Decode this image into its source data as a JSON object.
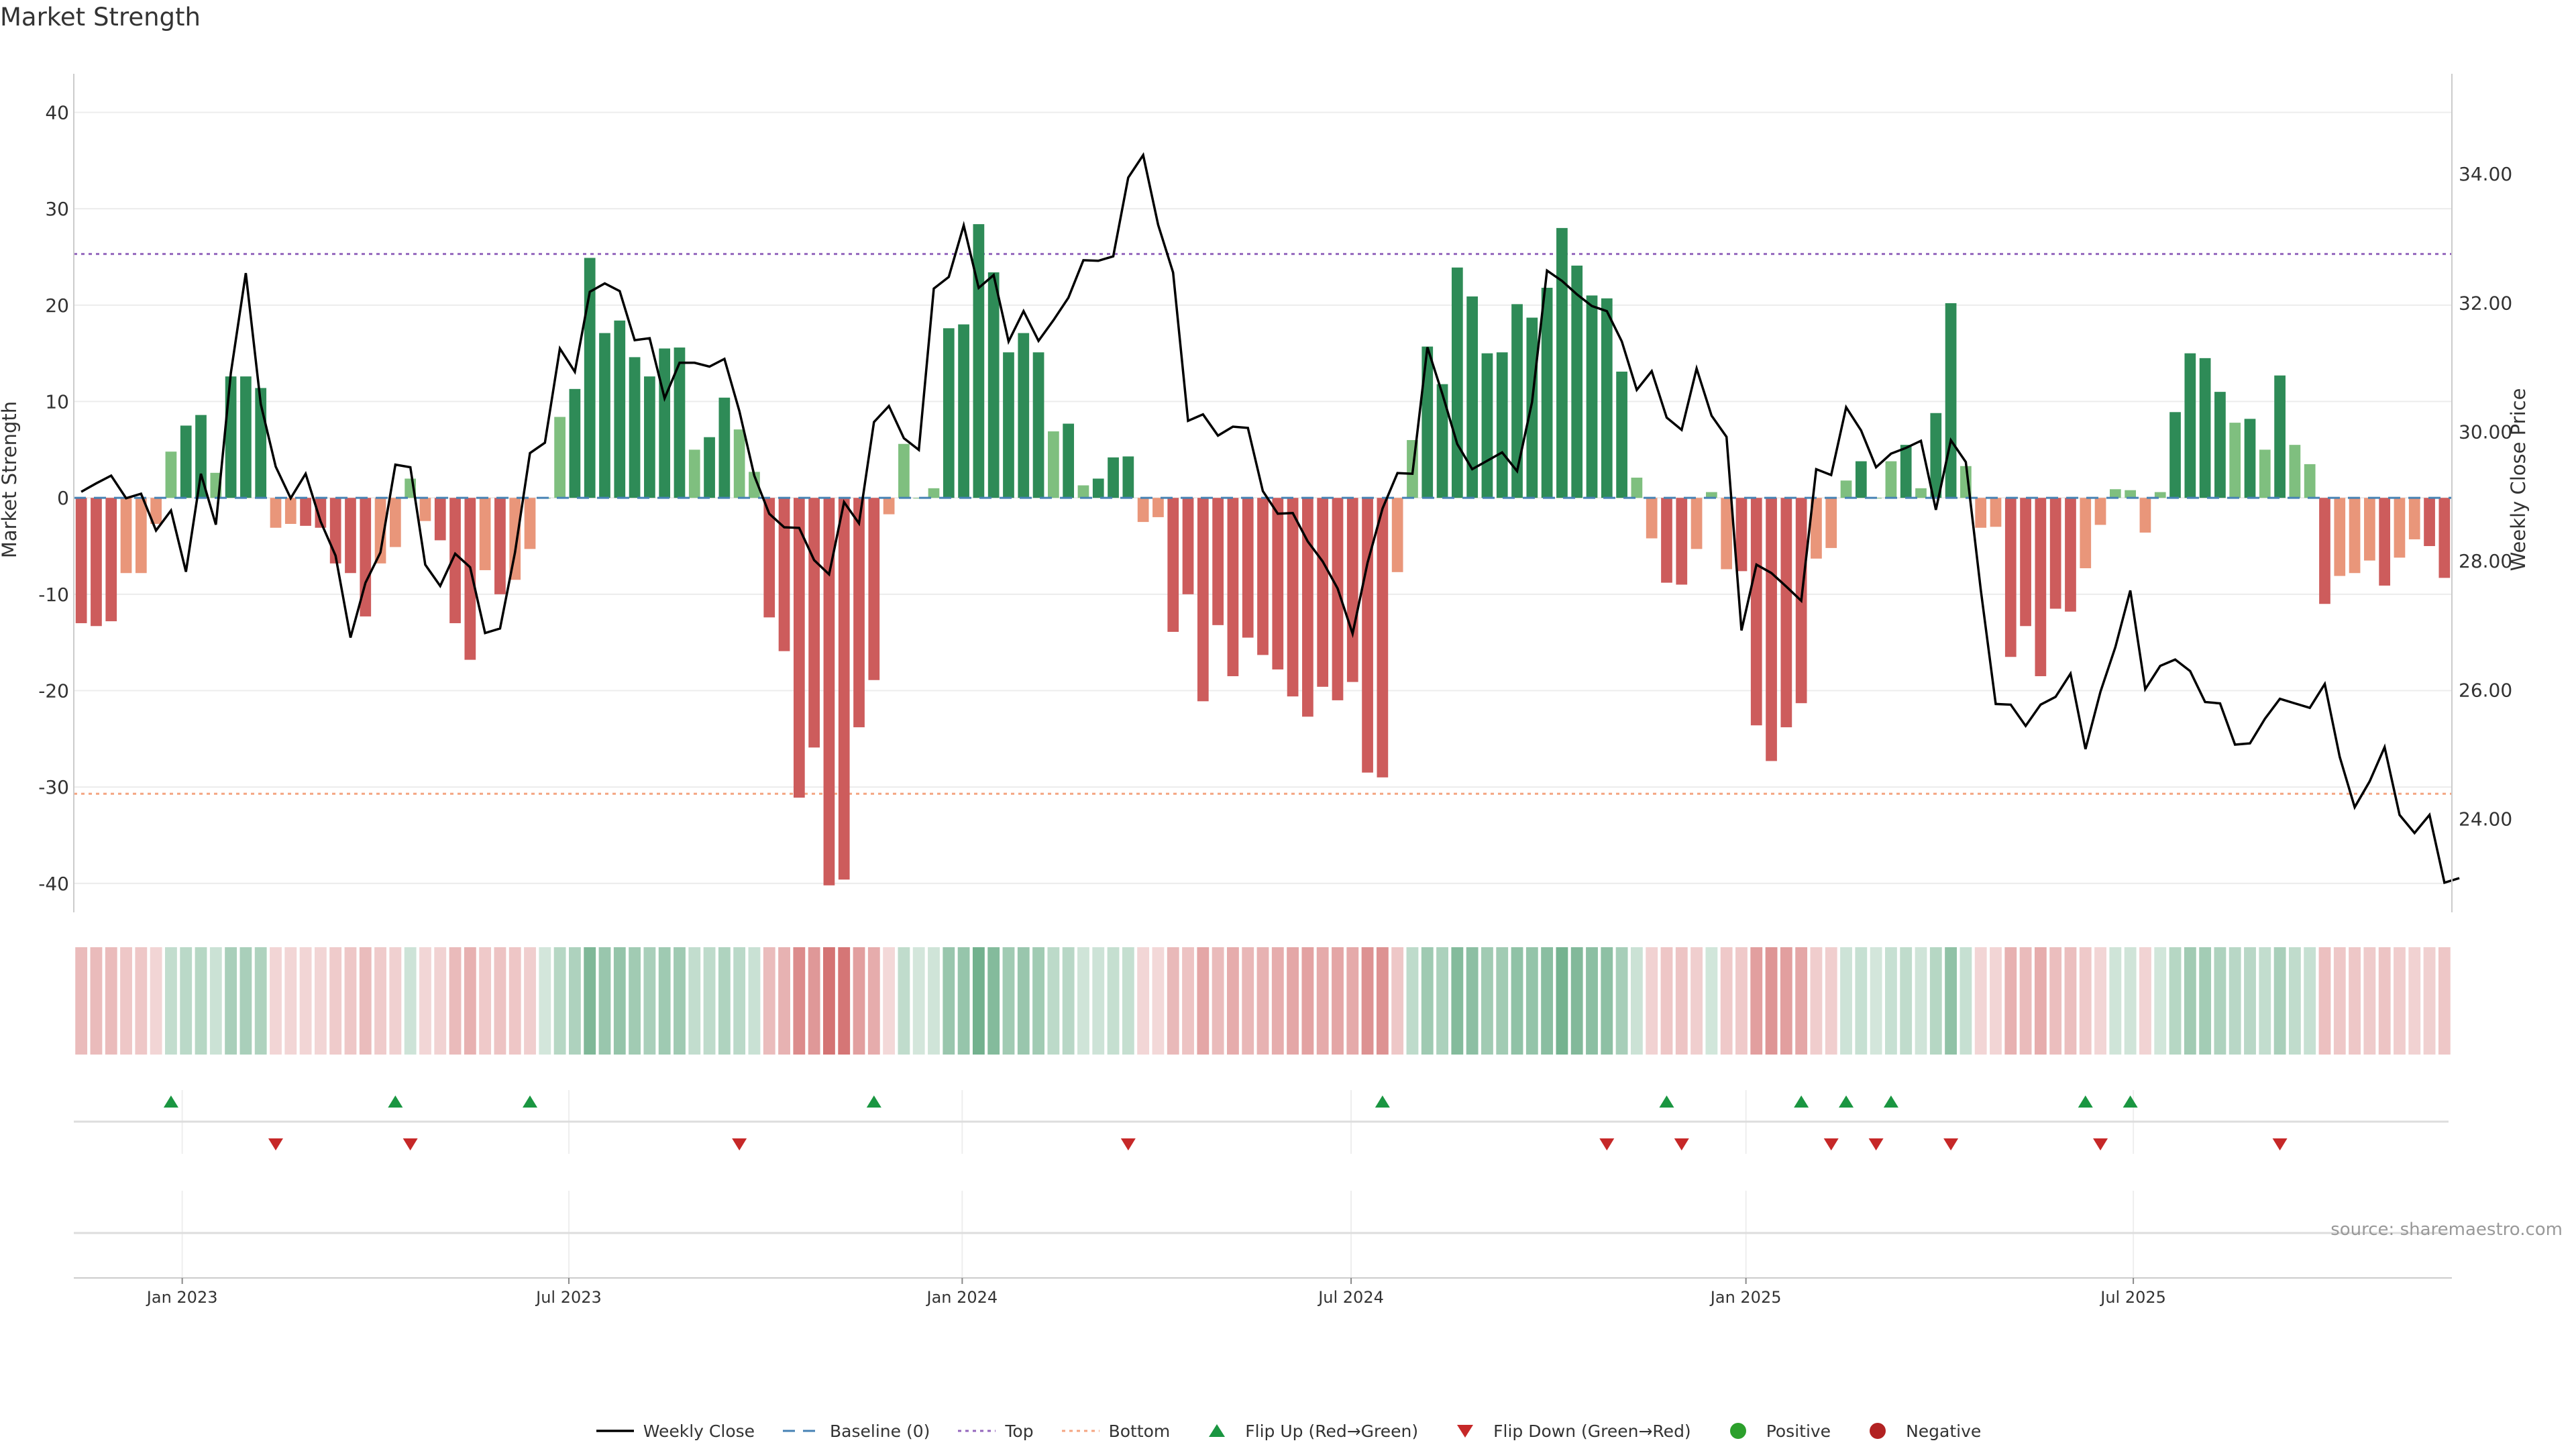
{
  "title": "Market Strength",
  "source": "source: sharemaestro.com",
  "colors": {
    "strong_green": "#2e8b57",
    "light_green": "#7fbf7f",
    "strong_red": "#cd5c5c",
    "light_red": "#e9967a",
    "price_line": "#000000",
    "baseline": "#4682b4",
    "top": "#9467bd",
    "bottom": "#f4a582",
    "flip_up": "#1a9641",
    "flip_down": "#c62828",
    "positive": "#2ca02c",
    "negative": "#b22222"
  },
  "legend": [
    {
      "key": "weekly_close",
      "label": "Weekly Close"
    },
    {
      "key": "baseline",
      "label": "Baseline (0)"
    },
    {
      "key": "top",
      "label": "Top"
    },
    {
      "key": "bottom",
      "label": "Bottom"
    },
    {
      "key": "flip_up",
      "label": "Flip Up (Red→Green)"
    },
    {
      "key": "flip_down",
      "label": "Flip Down (Green→Red)"
    },
    {
      "key": "positive",
      "label": "Positive"
    },
    {
      "key": "negative",
      "label": "Negative"
    }
  ],
  "chart_data": {
    "type": "bar",
    "title": "Market Strength",
    "ylabel": "Market Strength",
    "y2label": "Weekly Close Price",
    "ylim": [
      -43,
      44
    ],
    "y2lim": [
      22.55,
      35.55
    ],
    "yticks": [
      40,
      30,
      20,
      10,
      0,
      -10,
      -20,
      -30,
      -40
    ],
    "y2ticks": [
      "34.00",
      "32.00",
      "30.00",
      "28.00",
      "26.00",
      "24.00"
    ],
    "top_line": 25.3,
    "bottom_line": -30.7,
    "baseline": 0,
    "x_start": "2022-11-11",
    "x_end": "2025-10-24",
    "xticks": [
      {
        "label": "Jan 2023",
        "week": 7.25
      },
      {
        "label": "Jul 2023",
        "week": 33.1
      },
      {
        "label": "Jan 2024",
        "week": 59.4
      },
      {
        "label": "Jul 2024",
        "week": 85.4
      },
      {
        "label": "Jan 2025",
        "week": 111.8
      },
      {
        "label": "Jul 2025",
        "week": 137.7
      }
    ],
    "weekly_strength": [
      -13,
      -13.3,
      -12.8,
      -7.8,
      -7.8,
      -2.7,
      4.8,
      7.5,
      8.6,
      2.6,
      12.6,
      12.6,
      11.4,
      -3.1,
      -2.7,
      -2.9,
      -3.1,
      -6.8,
      -7.8,
      -12.3,
      -6.8,
      -5.1,
      2,
      -2.4,
      -4.4,
      -13,
      -16.8,
      -7.5,
      -10,
      -8.5,
      -5.3,
      0,
      8.4,
      11.3,
      24.9,
      17.1,
      18.4,
      14.6,
      12.6,
      15.5,
      15.6,
      5,
      6.3,
      10.4,
      7.1,
      2.7,
      -12.4,
      -15.9,
      -31.1,
      -25.9,
      -40.2,
      -39.6,
      -23.8,
      -18.9,
      -1.7,
      5.6,
      0,
      1,
      17.6,
      18,
      28.4,
      23.4,
      15.1,
      17.1,
      15.1,
      6.9,
      7.7,
      1.3,
      2,
      4.2,
      4.3,
      -2.5,
      -2,
      -13.9,
      -10,
      -21.1,
      -13.2,
      -18.5,
      -14.5,
      -16.3,
      -17.8,
      -20.6,
      -22.7,
      -19.6,
      -21,
      -19.1,
      -28.5,
      -29,
      -7.7,
      6,
      15.7,
      11.8,
      23.9,
      20.9,
      15,
      15.1,
      20.1,
      18.7,
      21.8,
      28,
      24.1,
      21,
      20.7,
      13.1,
      2.1,
      -4.2,
      -8.8,
      -9,
      -5.3,
      0.6,
      -7.4,
      -7.6,
      -23.6,
      -27.3,
      -23.8,
      -21.3,
      -6.3,
      -5.2,
      1.8,
      3.8,
      0,
      3.8,
      5.5,
      1,
      8.8,
      20.2,
      3.3,
      -3.1,
      -3,
      -16.5,
      -13.3,
      -18.5,
      -11.5,
      -11.8,
      -7.3,
      -2.8,
      0.9,
      0.8,
      -3.6,
      0.6,
      8.9,
      15,
      14.5,
      11,
      7.8,
      8.2,
      5,
      12.7,
      5.5,
      3.5,
      -11,
      -8.1,
      -7.8,
      -6.5,
      -9.1,
      -6.2,
      -4.3,
      -5,
      -8.3
    ],
    "weekly_close": [
      29.07,
      29.2,
      29.32,
      28.97,
      29.04,
      28.47,
      28.78,
      27.83,
      29.35,
      28.56,
      30.91,
      32.46,
      30.43,
      29.46,
      28.97,
      29.35,
      28.61,
      28.08,
      26.81,
      27.66,
      28.13,
      29.49,
      29.45,
      27.94,
      27.61,
      28.11,
      27.9,
      26.88,
      26.95,
      28.13,
      29.67,
      29.83,
      31.29,
      30.93,
      32.17,
      32.3,
      32.18,
      31.42,
      31.45,
      30.52,
      31.07,
      31.07,
      31.01,
      31.13,
      30.32,
      29.32,
      28.73,
      28.52,
      28.51,
      28.01,
      27.79,
      28.91,
      28.58,
      30.15,
      30.4,
      29.9,
      29.72,
      32.22,
      32.4,
      33.2,
      32.23,
      32.43,
      31.4,
      31.87,
      31.41,
      31.73,
      32.08,
      32.66,
      32.65,
      32.72,
      33.94,
      34.29,
      33.21,
      32.47,
      30.17,
      30.27,
      29.94,
      30.08,
      30.06,
      29.08,
      28.73,
      28.74,
      28.3,
      27.99,
      27.57,
      26.87,
      27.97,
      28.81,
      29.36,
      29.35,
      31.31,
      30.59,
      29.81,
      29.42,
      29.55,
      29.68,
      29.39,
      30.46,
      32.5,
      32.34,
      32.13,
      31.95,
      31.87,
      31.4,
      30.65,
      30.94,
      30.22,
      30.03,
      30.98,
      30.25,
      29.92,
      26.92,
      27.94,
      27.81,
      27.6,
      27.38,
      29.42,
      29.33,
      30.38,
      30.02,
      29.45,
      29.66,
      29.75,
      29.86,
      28.79,
      29.87,
      29.53,
      27.55,
      25.78,
      25.77,
      25.44,
      25.77,
      25.89,
      26.25,
      25.08,
      25.97,
      26.66,
      27.54,
      26.01,
      26.37,
      26.47,
      26.29,
      25.81,
      25.79,
      25.15,
      25.17,
      25.55,
      25.86,
      25.79,
      25.72,
      26.09,
      24.96,
      24.18,
      24.58,
      25.11,
      24.06,
      23.78,
      24.06,
      23.01,
      23.08
    ],
    "strength_series": {
      "green_dark": "strong positive",
      "green_light": "weak positive",
      "red_dark": "strong negative",
      "red_light": "weak negative"
    },
    "flip_up_weeks": [
      6.5,
      21.5,
      30.5,
      53.5,
      87.5,
      106.5,
      115.5,
      118.5,
      121.5,
      134.5,
      137.5
    ],
    "flip_down_weeks": [
      13.5,
      22.5,
      44.5,
      70.5,
      102.5,
      107.5,
      117.5,
      120.5,
      125.5,
      135.5,
      147.5
    ]
  }
}
